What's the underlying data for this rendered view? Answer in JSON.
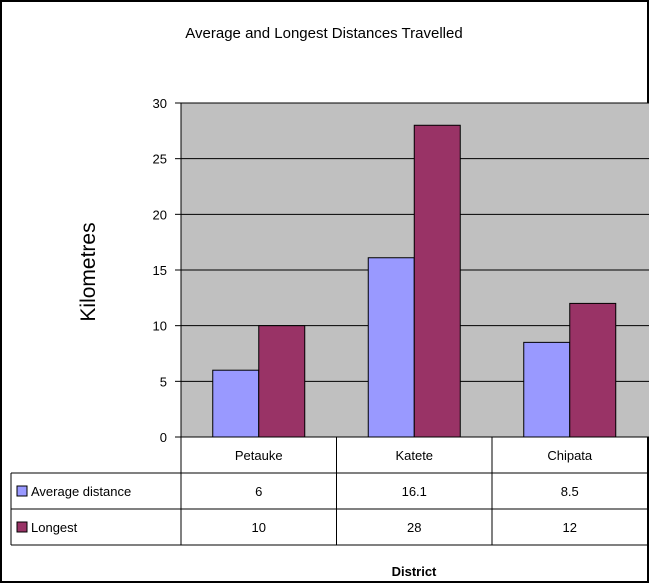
{
  "chart_data": {
    "type": "bar",
    "title": "Average and Longest Distances Travelled",
    "xlabel": "District",
    "ylabel": "Kilometres",
    "categories": [
      "Petauke",
      "Katete",
      "Chipata"
    ],
    "series": [
      {
        "name": "Average distance",
        "values": [
          6,
          16.1,
          8.5
        ],
        "color": "#9999ff"
      },
      {
        "name": "Longest",
        "values": [
          10,
          28,
          12
        ],
        "color": "#993366"
      }
    ],
    "table_values": [
      [
        "6",
        "16.1",
        "8.5"
      ],
      [
        "10",
        "28",
        "12"
      ]
    ],
    "ylim": [
      0,
      30
    ],
    "yticks": [
      0,
      5,
      10,
      15,
      20,
      25,
      30
    ],
    "grid": true,
    "plot_background": "#c0c0c0",
    "legend": "data table"
  }
}
